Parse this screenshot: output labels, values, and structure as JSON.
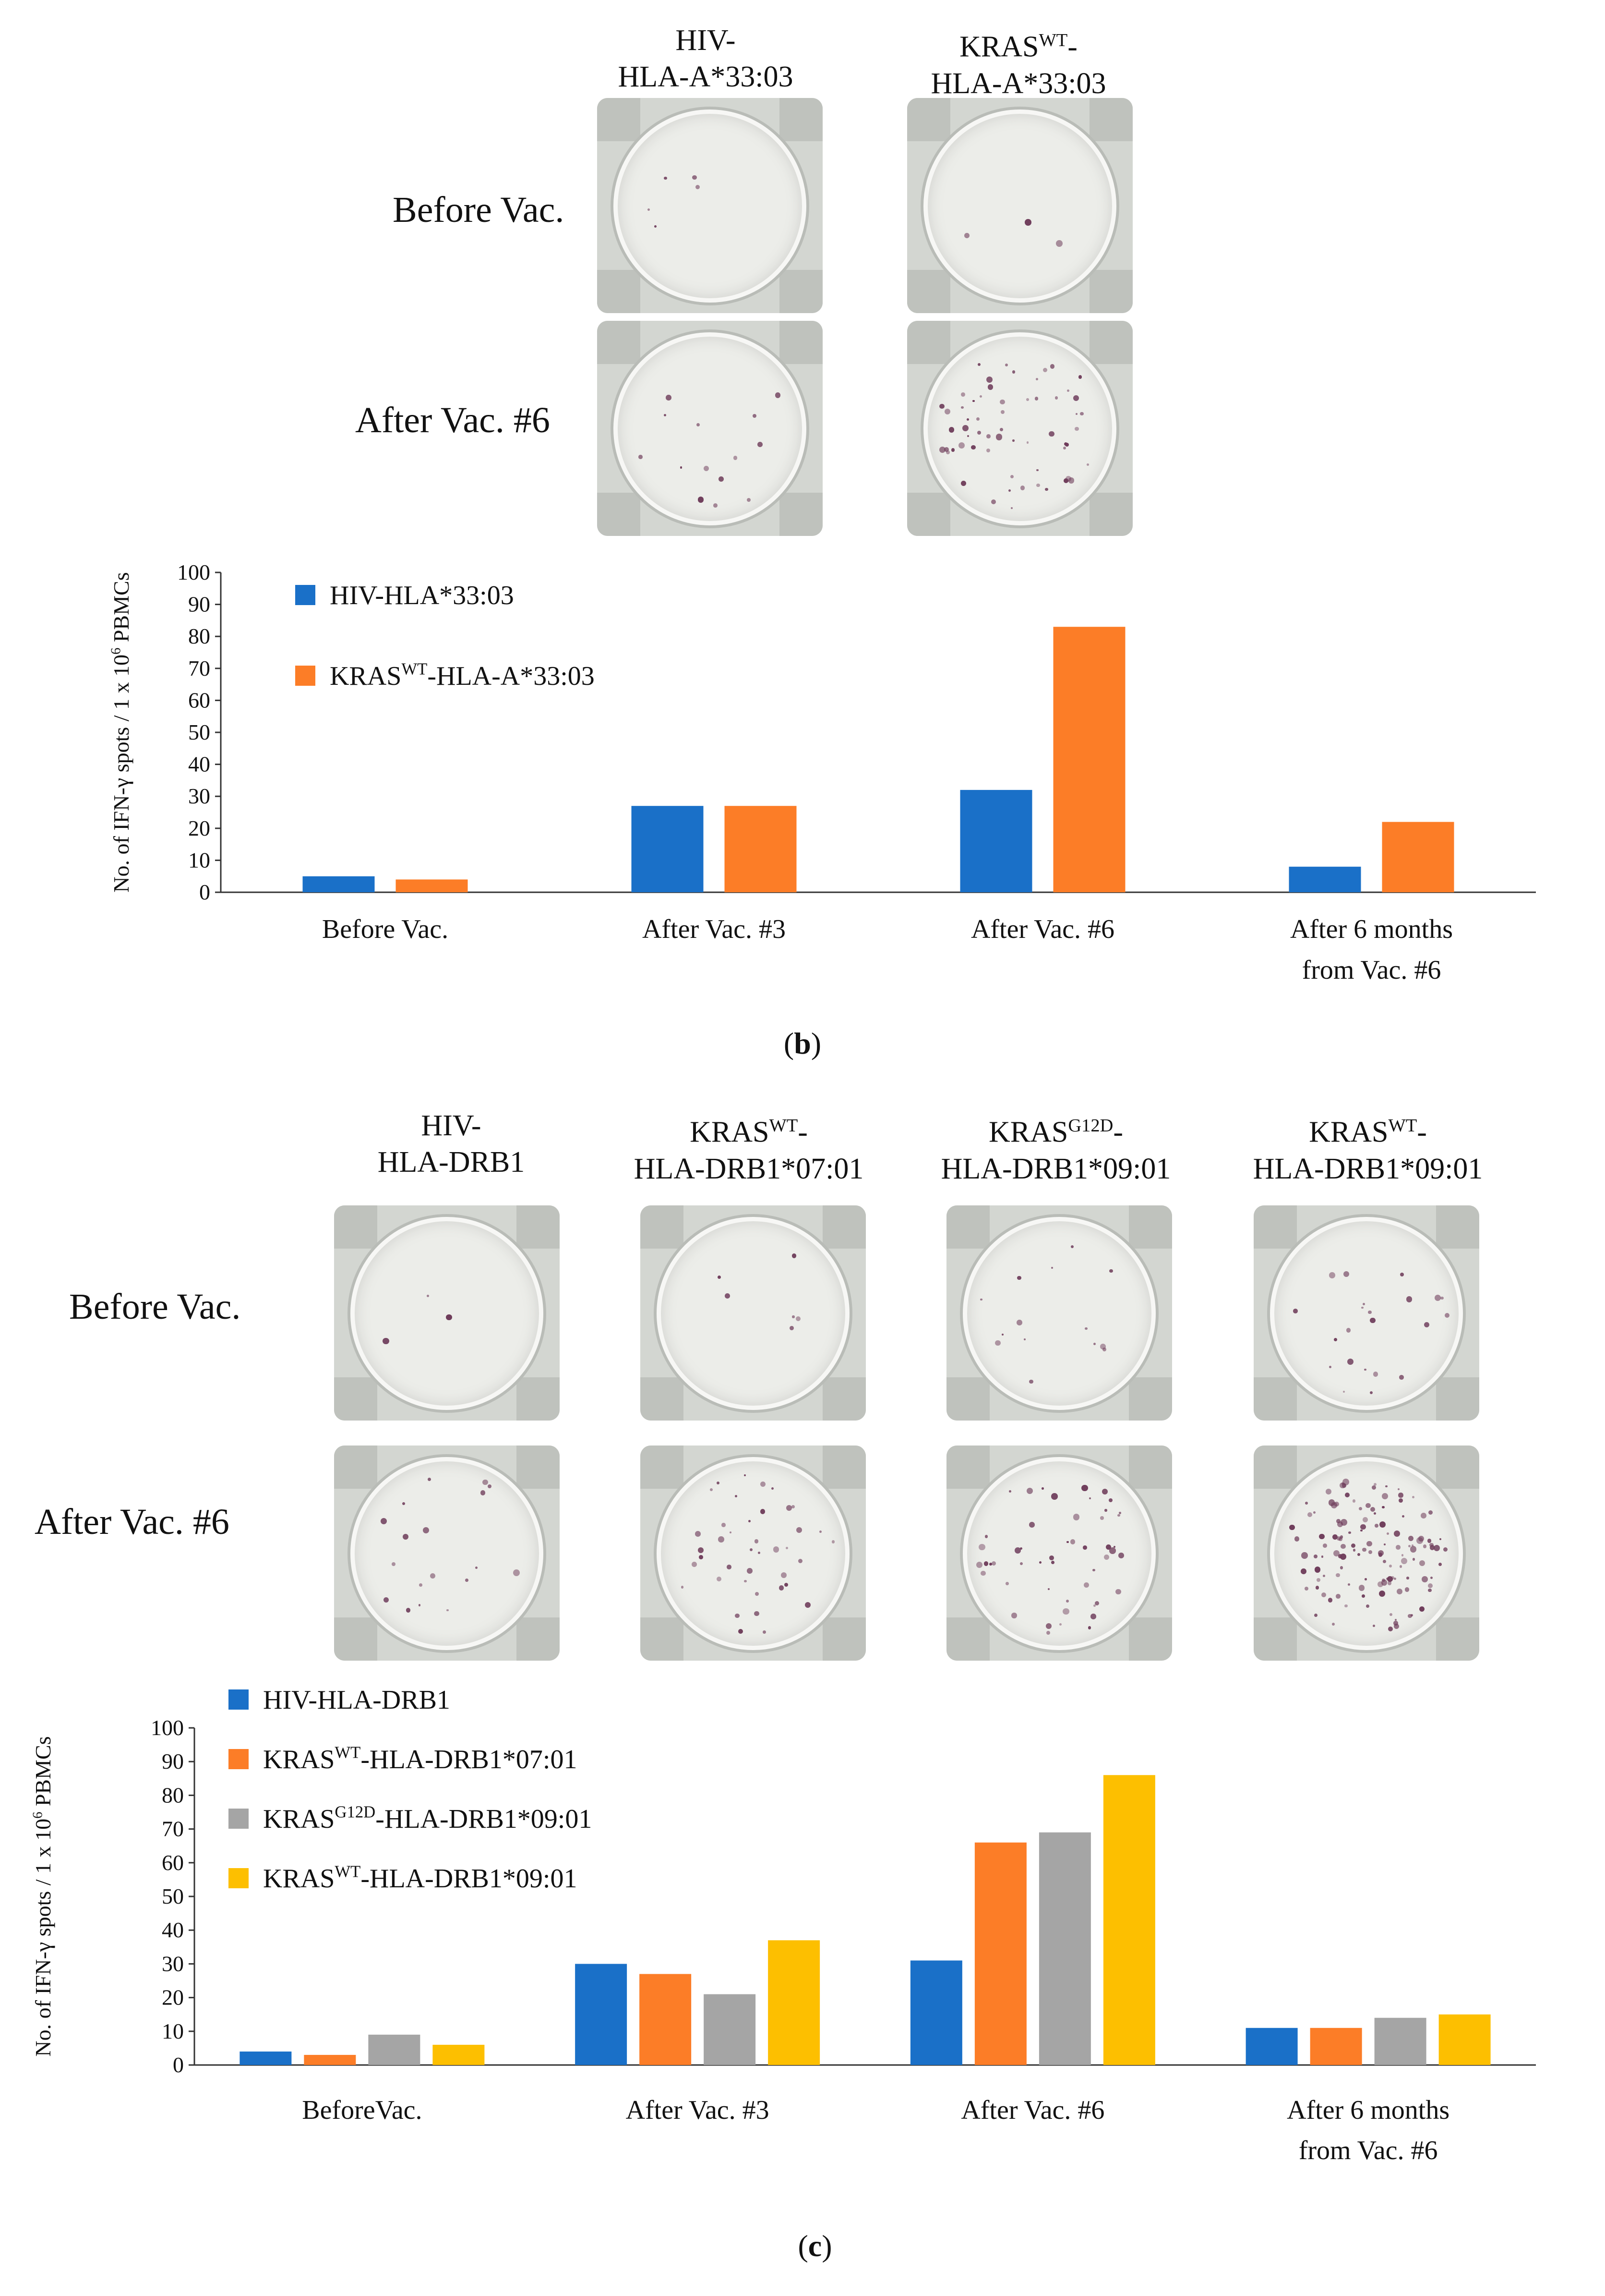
{
  "panel_b": {
    "columns": [
      {
        "line1_base": "HIV-",
        "line1_sup": "",
        "line2": "HLA-A*33:03"
      },
      {
        "line1_base": "KRAS",
        "line1_sup": "WT",
        "line1_tail": "-",
        "line2": "HLA-A*33:03"
      }
    ],
    "rows": [
      "Before Vac.",
      "After Vac. #6"
    ],
    "label_open": "(",
    "label_letter": "b",
    "label_close": ")"
  },
  "panel_c": {
    "columns": [
      {
        "line1_base": "HIV-",
        "line1_sup": "",
        "line2": "HLA-DRB1"
      },
      {
        "line1_base": "KRAS",
        "line1_sup": "WT",
        "line1_tail": "-",
        "line2": "HLA-DRB1*07:01"
      },
      {
        "line1_base": "KRAS",
        "line1_sup": "G12D",
        "line1_tail": "-",
        "line2": "HLA-DRB1*09:01"
      },
      {
        "line1_base": "KRAS",
        "line1_sup": "WT",
        "line1_tail": "-",
        "line2": "HLA-DRB1*09:01"
      }
    ],
    "rows": [
      "Before Vac.",
      "After Vac. #6"
    ],
    "label_open": "(",
    "label_letter": "c",
    "label_close": ")"
  },
  "chart_data": [
    {
      "type": "bar",
      "ylabel_pre": "No. of IFN-γ spots / 1 x 10",
      "ylabel_sup": "6",
      "ylabel_post": " PBMCs",
      "ylim": [
        0,
        100
      ],
      "yticks": [
        "0",
        "10",
        "20",
        "30",
        "40",
        "50",
        "60",
        "70",
        "80",
        "90",
        "100"
      ],
      "categories": [
        [
          "Before Vac."
        ],
        [
          "After Vac. #3"
        ],
        [
          "After  Vac. #6"
        ],
        [
          "After 6 months",
          "from Vac. #6"
        ]
      ],
      "series": [
        {
          "name_base": "HIV-HLA*33:03",
          "name_sup": "",
          "name_tail": "",
          "color": "#1a70c8",
          "values": [
            5,
            27,
            32,
            8
          ]
        },
        {
          "name_base": "KRAS",
          "name_sup": "WT",
          "name_tail": "-HLA-A*33:03",
          "color": "#fc7d27",
          "values": [
            4,
            27,
            83,
            22
          ]
        }
      ]
    },
    {
      "type": "bar",
      "ylabel_pre": "No. of IFN-γ spots / 1 x 10",
      "ylabel_sup": "6",
      "ylabel_post": " PBMCs",
      "ylim": [
        0,
        100
      ],
      "yticks": [
        "0",
        "10",
        "20",
        "30",
        "40",
        "50",
        "60",
        "70",
        "80",
        "90",
        "100"
      ],
      "categories": [
        [
          "BeforeVac."
        ],
        [
          "After Vac. #3"
        ],
        [
          "After  Vac. #6"
        ],
        [
          "After 6 months",
          "from Vac. #6"
        ]
      ],
      "series": [
        {
          "name_base": "HIV-HLA-DRB1",
          "name_sup": "",
          "name_tail": "",
          "color": "#1a70c8",
          "values": [
            4,
            30,
            31,
            11
          ]
        },
        {
          "name_base": "KRAS",
          "name_sup": "WT",
          "name_tail": "-HLA-DRB1*07:01",
          "color": "#fc7d27",
          "values": [
            3,
            27,
            66,
            11
          ]
        },
        {
          "name_base": "KRAS",
          "name_sup": "G12D",
          "name_tail": "-HLA-DRB1*09:01",
          "color": "#a5a5a5",
          "values": [
            9,
            21,
            69,
            14
          ]
        },
        {
          "name_base": "KRAS",
          "name_sup": "WT",
          "name_tail": "-HLA-DRB1*09:01",
          "color": "#fdbf00",
          "values": [
            6,
            37,
            86,
            15
          ]
        }
      ]
    }
  ]
}
